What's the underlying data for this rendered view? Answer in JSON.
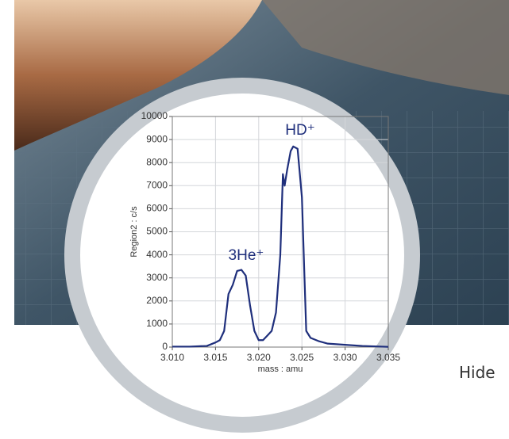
{
  "chart_data": {
    "type": "line",
    "x": [
      3.01,
      3.012,
      3.014,
      3.015,
      3.0155,
      3.016,
      3.0165,
      3.017,
      3.0175,
      3.018,
      3.0185,
      3.019,
      3.0195,
      3.02,
      3.0205,
      3.021,
      3.0215,
      3.022,
      3.0225,
      3.0228,
      3.023,
      3.0233,
      3.0237,
      3.024,
      3.0245,
      3.025,
      3.0253,
      3.0255,
      3.026,
      3.027,
      3.028,
      3.03,
      3.032,
      3.035
    ],
    "values": [
      20,
      20,
      50,
      200,
      300,
      700,
      2300,
      2700,
      3300,
      3350,
      3100,
      1800,
      700,
      300,
      300,
      500,
      700,
      1500,
      4000,
      7500,
      7000,
      7700,
      8500,
      8700,
      8600,
      6500,
      3000,
      700,
      400,
      250,
      150,
      100,
      50,
      10
    ],
    "color": "#1f2f7c",
    "xlim": [
      3.01,
      3.035
    ],
    "xticks": [
      {
        "value": 3.01,
        "label": "3.010"
      },
      {
        "value": 3.015,
        "label": "3.015"
      },
      {
        "value": 3.02,
        "label": "3.020"
      },
      {
        "value": 3.025,
        "label": "3.025"
      },
      {
        "value": 3.03,
        "label": "3.030"
      },
      {
        "value": 3.035,
        "label": "3.035"
      }
    ],
    "ylim": [
      0,
      10000
    ],
    "yticks": [
      0,
      1000,
      2000,
      3000,
      4000,
      5000,
      6000,
      7000,
      8000,
      9000,
      10000
    ],
    "xlabel": "mass : amu",
    "ylabel": "Region2 : c/s",
    "annotations": [
      "HD⁺",
      "3He⁺"
    ],
    "grid": true
  },
  "hide_button": "Hide"
}
